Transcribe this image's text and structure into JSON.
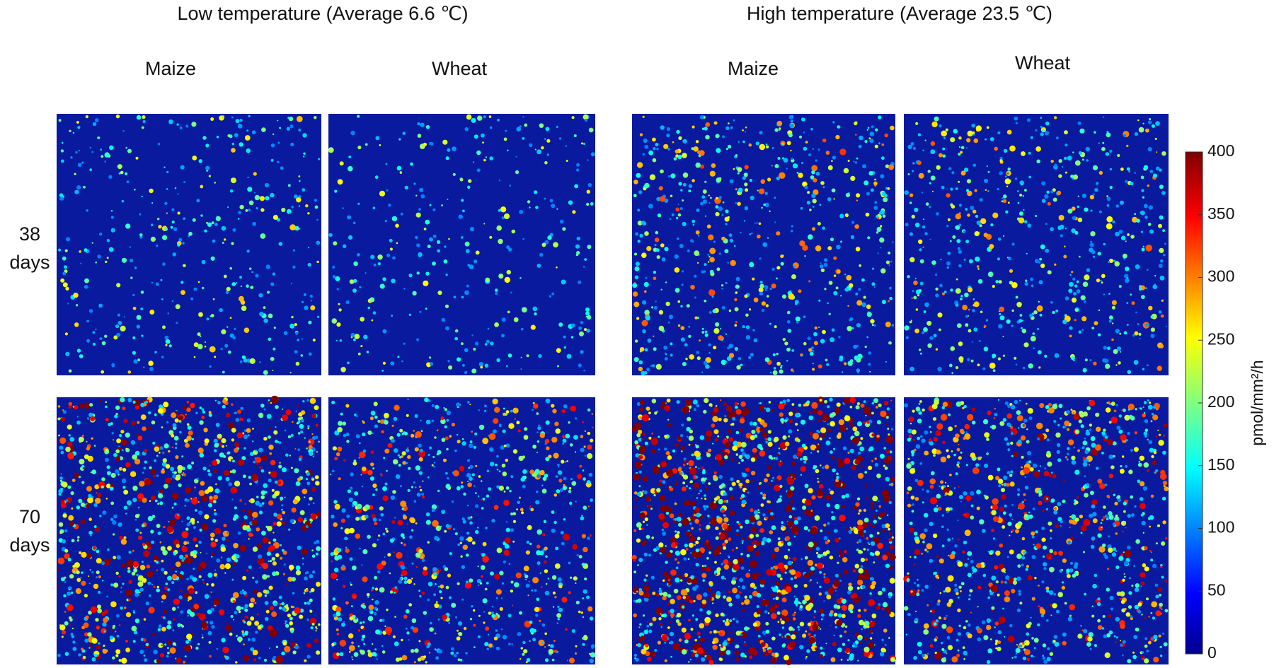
{
  "header": {
    "groups": [
      {
        "title": "Low temperature (Average 6.6 ℃)",
        "columns": [
          "Maize",
          "Wheat"
        ]
      },
      {
        "title": "High temperature (Average 23.5 ℃)",
        "columns": [
          "Maize",
          "Wheat"
        ]
      }
    ]
  },
  "rows": [
    {
      "label": [
        "38",
        "days"
      ]
    },
    {
      "label": [
        "70",
        "days"
      ]
    }
  ],
  "colorbar": {
    "label": "pmol/mm²/h",
    "lim": [
      0,
      400
    ],
    "ticks": [
      0,
      50,
      100,
      150,
      200,
      250,
      300,
      350,
      400
    ]
  }
}
